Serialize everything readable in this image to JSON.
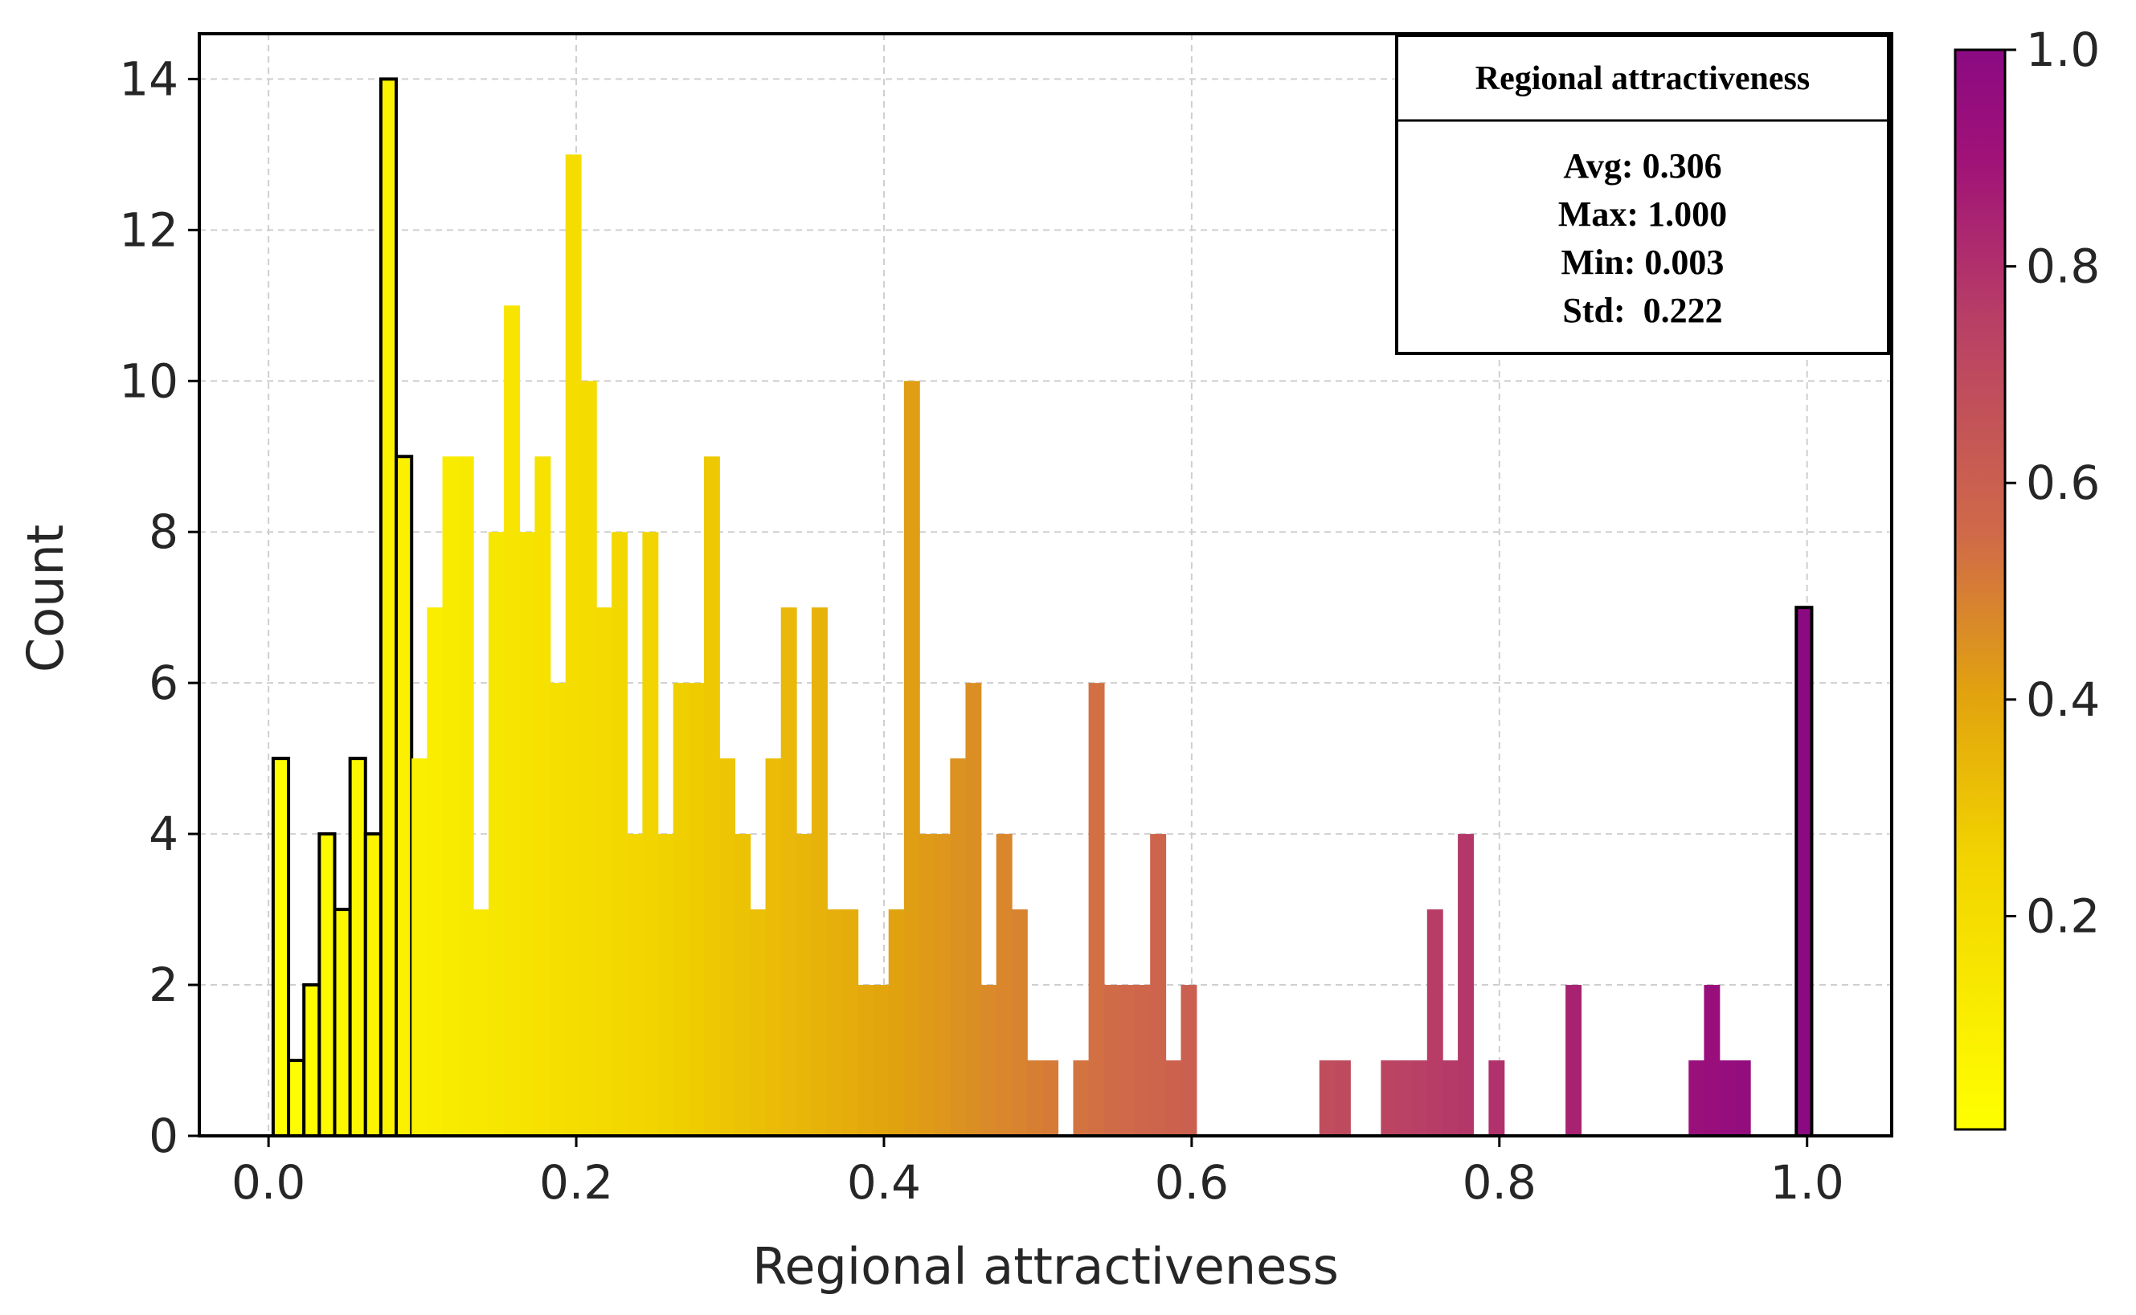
{
  "chart_data": {
    "type": "bar",
    "subtype": "histogram",
    "title": "",
    "xlabel": "Regional attractiveness",
    "ylabel": "Count",
    "xlim": [
      -0.045,
      1.055
    ],
    "ylim": [
      0,
      14.6
    ],
    "xticks": [
      0.0,
      0.2,
      0.4,
      0.6,
      0.8,
      1.0
    ],
    "xtick_labels": [
      "0.0",
      "0.2",
      "0.4",
      "0.6",
      "0.8",
      "1.0"
    ],
    "yticks": [
      0,
      2,
      4,
      6,
      8,
      10,
      12,
      14
    ],
    "ytick_labels": [
      "0",
      "2",
      "4",
      "6",
      "8",
      "10",
      "12",
      "14"
    ],
    "grid": true,
    "bin_width": 0.01,
    "bin_starts": [
      0.003,
      0.013,
      0.023,
      0.033,
      0.043,
      0.053,
      0.063,
      0.073,
      0.083,
      0.093,
      0.103,
      0.113,
      0.123,
      0.133,
      0.143,
      0.153,
      0.163,
      0.173,
      0.183,
      0.193,
      0.203,
      0.213,
      0.223,
      0.233,
      0.243,
      0.253,
      0.263,
      0.273,
      0.283,
      0.293,
      0.303,
      0.313,
      0.323,
      0.333,
      0.343,
      0.353,
      0.363,
      0.373,
      0.383,
      0.393,
      0.403,
      0.413,
      0.423,
      0.433,
      0.443,
      0.453,
      0.463,
      0.473,
      0.483,
      0.493,
      0.503,
      0.513,
      0.523,
      0.533,
      0.543,
      0.553,
      0.563,
      0.573,
      0.583,
      0.593,
      0.603,
      0.613,
      0.623,
      0.633,
      0.643,
      0.653,
      0.663,
      0.673,
      0.683,
      0.693,
      0.703,
      0.713,
      0.723,
      0.733,
      0.743,
      0.753,
      0.763,
      0.773,
      0.783,
      0.793,
      0.803,
      0.813,
      0.823,
      0.833,
      0.843,
      0.853,
      0.863,
      0.873,
      0.883,
      0.893,
      0.903,
      0.913,
      0.923,
      0.933,
      0.943,
      0.953,
      0.963,
      0.973,
      0.983,
      0.993
    ],
    "counts": [
      5,
      1,
      2,
      4,
      3,
      5,
      4,
      14,
      9,
      5,
      7,
      9,
      9,
      3,
      8,
      11,
      8,
      9,
      6,
      13,
      10,
      7,
      8,
      4,
      8,
      4,
      6,
      6,
      9,
      5,
      4,
      3,
      5,
      7,
      4,
      7,
      3,
      3,
      2,
      2,
      3,
      10,
      4,
      4,
      5,
      6,
      2,
      4,
      3,
      1,
      1,
      0,
      1,
      6,
      2,
      2,
      2,
      4,
      1,
      2,
      0,
      0,
      0,
      0,
      0,
      0,
      0,
      0,
      1,
      1,
      0,
      0,
      1,
      1,
      1,
      3,
      1,
      4,
      0,
      1,
      0,
      0,
      0,
      0,
      2,
      0,
      0,
      0,
      0,
      0,
      0,
      0,
      1,
      2,
      1,
      1,
      0,
      0,
      0,
      7
    ],
    "outlined_bins": [
      0,
      1,
      2,
      3,
      4,
      5,
      6,
      7,
      8,
      99
    ],
    "colormap": {
      "name": "plasma-reversed (yellow to purple)",
      "stops": [
        {
          "value": 0.0,
          "color": "#ffff00"
        },
        {
          "value": 0.25,
          "color": "#f2d400"
        },
        {
          "value": 0.4,
          "color": "#e2a40e"
        },
        {
          "value": 0.55,
          "color": "#d06a48"
        },
        {
          "value": 0.75,
          "color": "#b83f66"
        },
        {
          "value": 0.9,
          "color": "#a01278"
        },
        {
          "value": 1.0,
          "color": "#8b0a82"
        }
      ]
    },
    "colorbar": {
      "range": [
        0.003,
        1.0
      ],
      "ticks": [
        0.2,
        0.4,
        0.6,
        0.8,
        1.0
      ],
      "tick_labels": [
        "0.2",
        "0.4",
        "0.6",
        "0.8",
        "1.0"
      ]
    },
    "stats_box": {
      "title": "Regional attractiveness",
      "lines": [
        "Avg: 0.306",
        "Max: 1.000",
        "Min: 0.003",
        "Std:  0.222"
      ]
    }
  }
}
